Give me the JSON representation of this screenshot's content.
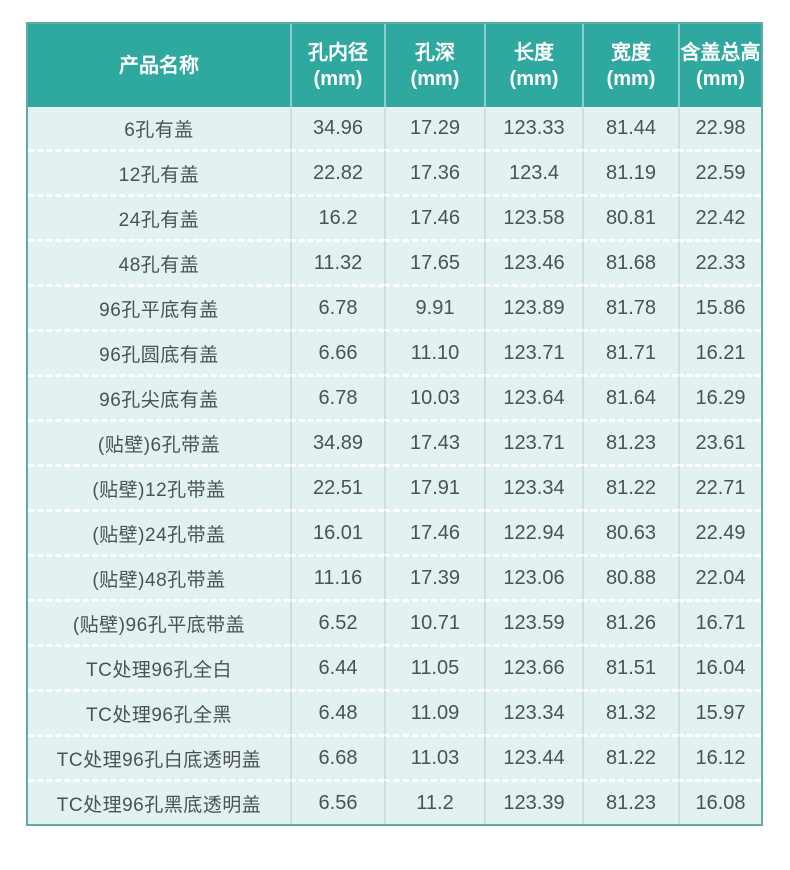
{
  "table": {
    "columns": [
      {
        "label": "产品名称",
        "unit": ""
      },
      {
        "label": "孔内径",
        "unit": "(mm)"
      },
      {
        "label": "孔深",
        "unit": "(mm)"
      },
      {
        "label": "长度",
        "unit": "(mm)"
      },
      {
        "label": "宽度",
        "unit": "(mm)"
      },
      {
        "label": "含盖总高",
        "unit": "(mm)"
      }
    ],
    "rows": [
      [
        "6孔有盖",
        "34.96",
        "17.29",
        "123.33",
        "81.44",
        "22.98"
      ],
      [
        "12孔有盖",
        "22.82",
        "17.36",
        "123.4",
        "81.19",
        "22.59"
      ],
      [
        "24孔有盖",
        "16.2",
        "17.46",
        "123.58",
        "80.81",
        "22.42"
      ],
      [
        "48孔有盖",
        "11.32",
        "17.65",
        "123.46",
        "81.68",
        "22.33"
      ],
      [
        "96孔平底有盖",
        "6.78",
        "9.91",
        "123.89",
        "81.78",
        "15.86"
      ],
      [
        "96孔圆底有盖",
        "6.66",
        "11.10",
        "123.71",
        "81.71",
        "16.21"
      ],
      [
        "96孔尖底有盖",
        "6.78",
        "10.03",
        "123.64",
        "81.64",
        "16.29"
      ],
      [
        "(贴壁)6孔带盖",
        "34.89",
        "17.43",
        "123.71",
        "81.23",
        "23.61"
      ],
      [
        "(贴壁)12孔带盖",
        "22.51",
        "17.91",
        "123.34",
        "81.22",
        "22.71"
      ],
      [
        "(贴壁)24孔带盖",
        "16.01",
        "17.46",
        "122.94",
        "80.63",
        "22.49"
      ],
      [
        "(贴壁)48孔带盖",
        "11.16",
        "17.39",
        "123.06",
        "80.88",
        "22.04"
      ],
      [
        "(贴壁)96孔平底带盖",
        "6.52",
        "10.71",
        "123.59",
        "81.26",
        "16.71"
      ],
      [
        "TC处理96孔全白",
        "6.44",
        "11.05",
        "123.66",
        "81.51",
        "16.04"
      ],
      [
        "TC处理96孔全黑",
        "6.48",
        "11.09",
        "123.34",
        "81.32",
        "15.97"
      ],
      [
        "TC处理96孔白底透明盖",
        "6.68",
        "11.03",
        "123.44",
        "81.22",
        "16.12"
      ],
      [
        "TC处理96孔黑底透明盖",
        "6.56",
        "11.2",
        "123.39",
        "81.23",
        "16.08"
      ]
    ]
  },
  "colors": {
    "header_bg": "#2FA9A0",
    "header_text": "#FFFFFF",
    "body_bg": "#E4F1F1",
    "body_text": "#4B5256",
    "outer_border": "#63ACA6",
    "column_separator": "#C9E1E6",
    "row_separator": "#FFFFFF"
  }
}
